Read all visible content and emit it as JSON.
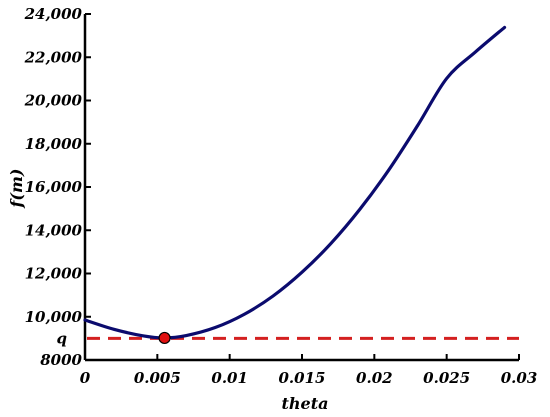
{
  "chart_data": {
    "type": "line",
    "title": "",
    "xlabel": "theta",
    "ylabel": "f(m)",
    "xlim": [
      0,
      0.03
    ],
    "ylim": [
      8000,
      24000
    ],
    "grid": false,
    "x_ticks": [
      0,
      0.005,
      0.01,
      0.015,
      0.02,
      0.025,
      0.03
    ],
    "x_tick_labels": [
      "0",
      "0.005",
      "0.01",
      "0.015",
      "0.02",
      "0.025",
      "0.03"
    ],
    "y_ticks": [
      8000,
      10000,
      12000,
      14000,
      16000,
      18000,
      20000,
      22000,
      24000
    ],
    "y_tick_labels": [
      "8000",
      "10,000",
      "12,000",
      "14,000",
      "16,000",
      "18,000",
      "20,000",
      "22,000",
      "24,000"
    ],
    "series": [
      {
        "color": "#0b0b6e",
        "x": [
          0,
          0.002,
          0.004,
          0.0055,
          0.007,
          0.009,
          0.011,
          0.013,
          0.015,
          0.017,
          0.019,
          0.021,
          0.023,
          0.025,
          0.027,
          0.029
        ],
        "y": [
          9850,
          9420,
          9120,
          9020,
          9130,
          9500,
          10110,
          10960,
          12060,
          13390,
          14970,
          16790,
          18850,
          21020,
          22250,
          23380
        ]
      }
    ],
    "reference_line": {
      "label": "q",
      "y": 9000,
      "color": "#d42020",
      "style": "dashed"
    },
    "minimum_point": {
      "x": 0.0055,
      "y": 9020,
      "color": "#e01010"
    }
  }
}
